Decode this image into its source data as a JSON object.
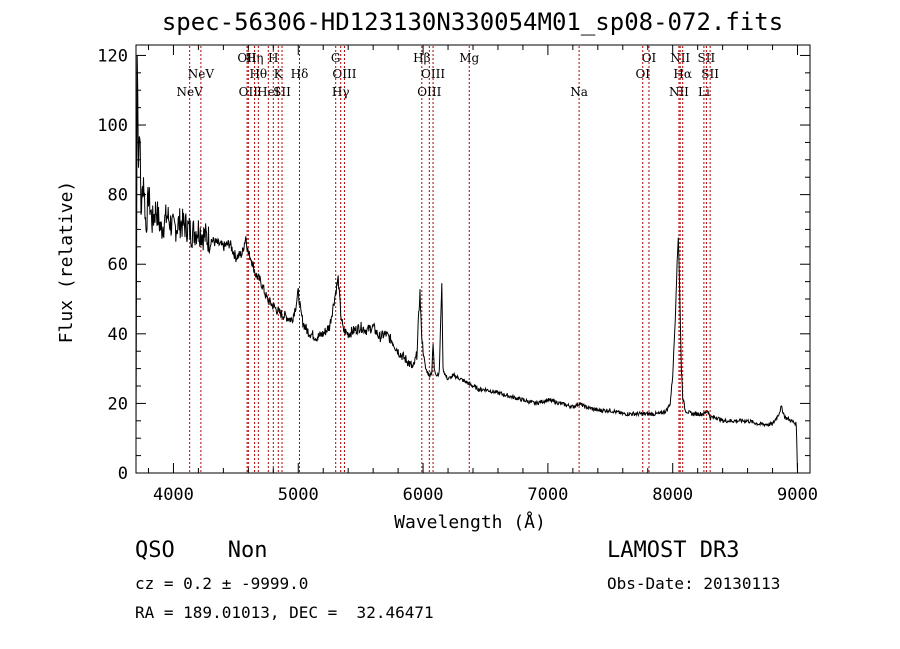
{
  "title": "spec-56306-HD123130N330054M01_sp08-072.fits",
  "classification": {
    "class": "QSO",
    "subclass": "Non",
    "label": "QSO    Non"
  },
  "survey": "LAMOST DR3",
  "cz_text": "cz = 0.2 ± -9999.0",
  "obs_date_text": "Obs-Date: 20130113",
  "radec_text": "RA = 189.01013, DEC =  32.46471",
  "colors": {
    "line_marker": "#b00000",
    "spectrum": "#000000"
  },
  "chart_data": {
    "type": "line",
    "xlabel": "Wavelength (Å)",
    "ylabel": "Flux (relative)",
    "xlim": [
      3700,
      9100
    ],
    "ylim": [
      0,
      123
    ],
    "xticks": [
      4000,
      5000,
      6000,
      7000,
      8000,
      9000
    ],
    "yticks": [
      0,
      20,
      40,
      60,
      80,
      100,
      120
    ],
    "series": [
      {
        "name": "spectrum",
        "x": [
          3700,
          3710,
          3720,
          3730,
          3740,
          3760,
          3780,
          3800,
          3830,
          3860,
          3900,
          3950,
          4000,
          4050,
          4100,
          4150,
          4200,
          4250,
          4300,
          4350,
          4400,
          4450,
          4500,
          4550,
          4580,
          4600,
          4620,
          4660,
          4700,
          4750,
          4800,
          4850,
          4900,
          4950,
          4980,
          5000,
          5020,
          5040,
          5070,
          5100,
          5150,
          5200,
          5250,
          5280,
          5300,
          5320,
          5340,
          5360,
          5400,
          5450,
          5500,
          5550,
          5600,
          5650,
          5700,
          5750,
          5800,
          5850,
          5880,
          5920,
          5950,
          5965,
          5975,
          5985,
          6000,
          6020,
          6050,
          6070,
          6080,
          6090,
          6110,
          6130,
          6140,
          6150,
          6160,
          6180,
          6200,
          6250,
          6300,
          6350,
          6400,
          6450,
          6500,
          6600,
          6700,
          6800,
          6900,
          7000,
          7100,
          7200,
          7250,
          7300,
          7400,
          7500,
          7600,
          7700,
          7800,
          7900,
          7950,
          7980,
          8000,
          8020,
          8035,
          8045,
          8050,
          8060,
          8070,
          8080,
          8100,
          8150,
          8200,
          8250,
          8280,
          8300,
          8350,
          8400,
          8500,
          8600,
          8700,
          8800,
          8850,
          8870,
          8900,
          8950,
          8990,
          9000
        ],
        "values": [
          10,
          120,
          90,
          100,
          75,
          85,
          70,
          80,
          72,
          76,
          70,
          74,
          70,
          72,
          71,
          69,
          70,
          68,
          67,
          66,
          65,
          66,
          62,
          63,
          68,
          63,
          62,
          57,
          55,
          50,
          48,
          46,
          45,
          44,
          48,
          52,
          46,
          43,
          41,
          40,
          39,
          40,
          42,
          48,
          52,
          56,
          46,
          41,
          40,
          41,
          42,
          41,
          42,
          39,
          40,
          38,
          35,
          33,
          32,
          30,
          34,
          45,
          52,
          42,
          35,
          30,
          28,
          29,
          37,
          30,
          28,
          29,
          42,
          55,
          30,
          28,
          27,
          28,
          27,
          26,
          25,
          24,
          24,
          23,
          22,
          21,
          20,
          21,
          20,
          19,
          20,
          19,
          18,
          18,
          17,
          17,
          17,
          17,
          18,
          20,
          28,
          44,
          60,
          68,
          62,
          45,
          30,
          22,
          18,
          17,
          17,
          17,
          18,
          16,
          16,
          15,
          15,
          15,
          14,
          14,
          17,
          19,
          16,
          15,
          14,
          0
        ]
      }
    ],
    "line_markers": [
      {
        "name": "NeV",
        "x": 4130,
        "row": 3
      },
      {
        "name": "NeV",
        "x": 4220,
        "row": 2
      },
      {
        "name": "OII",
        "x": 4590,
        "row": 1
      },
      {
        "name": "OII",
        "x": 4600,
        "row": 3
      },
      {
        "name": "Hη",
        "x": 4650,
        "row": 1
      },
      {
        "name": "Hθ",
        "x": 4680,
        "row": 2
      },
      {
        "name": "HeI",
        "x": 4760,
        "row": 3
      },
      {
        "name": "H",
        "x": 4800,
        "row": 1
      },
      {
        "name": "K",
        "x": 4840,
        "row": 2
      },
      {
        "name": "Hδ",
        "x": 5010,
        "row": 2
      },
      {
        "name": "SII",
        "x": 4870,
        "row": 3
      },
      {
        "name": "G",
        "x": 5300,
        "row": 1
      },
      {
        "name": "OIII",
        "x": 5370,
        "row": 2
      },
      {
        "name": "Hγ",
        "x": 5340,
        "row": 3
      },
      {
        "name": "Hβ",
        "x": 5990,
        "row": 1
      },
      {
        "name": "OIII",
        "x": 6080,
        "row": 2
      },
      {
        "name": "OIII",
        "x": 6050,
        "row": 3
      },
      {
        "name": "Mg",
        "x": 6370,
        "row": 1
      },
      {
        "name": "Na",
        "x": 7250,
        "row": 3
      },
      {
        "name": "OI",
        "x": 7810,
        "row": 1
      },
      {
        "name": "OI",
        "x": 7760,
        "row": 2
      },
      {
        "name": "NII",
        "x": 8060,
        "row": 1
      },
      {
        "name": "Hα",
        "x": 8080,
        "row": 2
      },
      {
        "name": "NII",
        "x": 8050,
        "row": 3
      },
      {
        "name": "SII",
        "x": 8270,
        "row": 1
      },
      {
        "name": "SII",
        "x": 8300,
        "row": 2
      },
      {
        "name": "Li",
        "x": 8250,
        "row": 3
      }
    ]
  }
}
